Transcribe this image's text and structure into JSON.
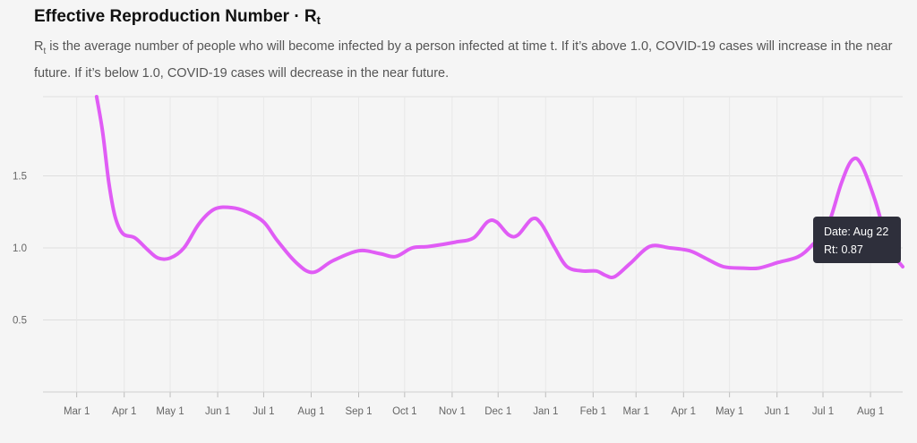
{
  "header": {
    "title_prefix": "Effective Reproduction Number · R",
    "title_sub": "t",
    "desc_prefix": "R",
    "desc_sub": "t",
    "desc_rest": " is the average number of people who will become infected by a person infected at time t. If it’s above 1.0, COVID-19 cases will increase in the near future. If it’s below 1.0, COVID-19 cases will decrease in the near future."
  },
  "chart_data": {
    "type": "line",
    "title": "Effective Reproduction Number · Rt",
    "xlabel": "",
    "ylabel": "",
    "ylim": [
      0,
      2.05
    ],
    "y_ticks": [
      0.5,
      1.0,
      1.5
    ],
    "y_tick_labels": [
      "0.5",
      "1.0",
      "1.5"
    ],
    "x_tick_labels": [
      "Mar 1",
      "Apr 1",
      "May 1",
      "Jun 1",
      "Jul 1",
      "Aug 1",
      "Sep 1",
      "Oct 1",
      "Nov 1",
      "Dec 1",
      "Jan 1",
      "Feb 1",
      "Mar 1",
      "Apr 1",
      "May 1",
      "Jun 1",
      "Jul 1",
      "Aug 1"
    ],
    "x_tick_dates": [
      "2020-03-01",
      "2020-04-01",
      "2020-05-01",
      "2020-06-01",
      "2020-07-01",
      "2020-08-01",
      "2020-09-01",
      "2020-10-01",
      "2020-11-01",
      "2020-12-01",
      "2021-01-01",
      "2021-02-01",
      "2021-03-01",
      "2021-04-01",
      "2021-05-01",
      "2021-06-01",
      "2021-07-01",
      "2021-08-01"
    ],
    "xlim": [
      "2020-02-08",
      "2021-08-22"
    ],
    "grid": true,
    "line_color": "#e05cf5",
    "series": [
      {
        "points": [
          [
            "2020-03-14",
            2.05
          ],
          [
            "2020-03-18",
            1.8
          ],
          [
            "2020-03-22",
            1.45
          ],
          [
            "2020-03-26",
            1.22
          ],
          [
            "2020-03-31",
            1.1
          ],
          [
            "2020-04-08",
            1.07
          ],
          [
            "2020-04-16",
            0.99
          ],
          [
            "2020-04-23",
            0.93
          ],
          [
            "2020-05-01",
            0.93
          ],
          [
            "2020-05-10",
            1.0
          ],
          [
            "2020-05-20",
            1.17
          ],
          [
            "2020-05-30",
            1.27
          ],
          [
            "2020-06-10",
            1.28
          ],
          [
            "2020-06-20",
            1.25
          ],
          [
            "2020-07-01",
            1.18
          ],
          [
            "2020-07-10",
            1.05
          ],
          [
            "2020-07-22",
            0.9
          ],
          [
            "2020-08-02",
            0.83
          ],
          [
            "2020-08-15",
            0.91
          ],
          [
            "2020-09-01",
            0.98
          ],
          [
            "2020-09-15",
            0.96
          ],
          [
            "2020-09-25",
            0.94
          ],
          [
            "2020-10-06",
            1.0
          ],
          [
            "2020-10-17",
            1.01
          ],
          [
            "2020-11-03",
            1.04
          ],
          [
            "2020-11-15",
            1.07
          ],
          [
            "2020-11-24",
            1.18
          ],
          [
            "2020-11-30",
            1.18
          ],
          [
            "2020-12-08",
            1.09
          ],
          [
            "2020-12-14",
            1.09
          ],
          [
            "2020-12-23",
            1.2
          ],
          [
            "2020-12-29",
            1.17
          ],
          [
            "2021-01-07",
            1.0
          ],
          [
            "2021-01-15",
            0.87
          ],
          [
            "2021-01-25",
            0.84
          ],
          [
            "2021-02-03",
            0.84
          ],
          [
            "2021-02-09",
            0.81
          ],
          [
            "2021-02-15",
            0.8
          ],
          [
            "2021-02-25",
            0.89
          ],
          [
            "2021-03-10",
            1.01
          ],
          [
            "2021-03-23",
            1.0
          ],
          [
            "2021-04-05",
            0.98
          ],
          [
            "2021-04-15",
            0.93
          ],
          [
            "2021-04-27",
            0.87
          ],
          [
            "2021-05-10",
            0.86
          ],
          [
            "2021-05-20",
            0.86
          ],
          [
            "2021-06-02",
            0.9
          ],
          [
            "2021-06-15",
            0.94
          ],
          [
            "2021-06-24",
            1.02
          ],
          [
            "2021-07-04",
            1.15
          ],
          [
            "2021-07-13",
            1.45
          ],
          [
            "2021-07-20",
            1.61
          ],
          [
            "2021-07-26",
            1.58
          ],
          [
            "2021-08-04",
            1.33
          ],
          [
            "2021-08-11",
            1.07
          ],
          [
            "2021-08-16",
            0.95
          ],
          [
            "2021-08-22",
            0.87
          ]
        ]
      }
    ],
    "tooltip": {
      "date_label": "Date: Aug 22",
      "value_label": "Rt: 0.87"
    }
  }
}
